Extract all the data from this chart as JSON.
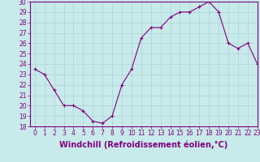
{
  "x": [
    0,
    1,
    2,
    3,
    4,
    5,
    6,
    7,
    8,
    9,
    10,
    11,
    12,
    13,
    14,
    15,
    16,
    17,
    18,
    19,
    20,
    21,
    22,
    23
  ],
  "y": [
    23.5,
    23.0,
    21.5,
    20.0,
    20.0,
    19.5,
    18.5,
    18.3,
    19.0,
    22.0,
    23.5,
    26.5,
    27.5,
    27.5,
    28.5,
    29.0,
    29.0,
    29.5,
    30.0,
    29.0,
    26.0,
    25.5,
    26.0,
    24.0
  ],
  "line_color": "#800080",
  "marker": "P",
  "bg_color": "#c8eaea",
  "grid_color": "#b0d8d8",
  "xlabel": "Windchill (Refroidissement éolien,°C)",
  "xlabel_fontsize": 7,
  "ylim": [
    18,
    30
  ],
  "xlim": [
    -0.5,
    23
  ],
  "yticks": [
    18,
    19,
    20,
    21,
    22,
    23,
    24,
    25,
    26,
    27,
    28,
    29,
    30
  ],
  "xticks": [
    0,
    1,
    2,
    3,
    4,
    5,
    6,
    7,
    8,
    9,
    10,
    11,
    12,
    13,
    14,
    15,
    16,
    17,
    18,
    19,
    20,
    21,
    22,
    23
  ],
  "tick_fontsize": 5.5,
  "tick_color": "#800080",
  "spine_color": "#800080",
  "markersize": 3,
  "linewidth": 0.8
}
